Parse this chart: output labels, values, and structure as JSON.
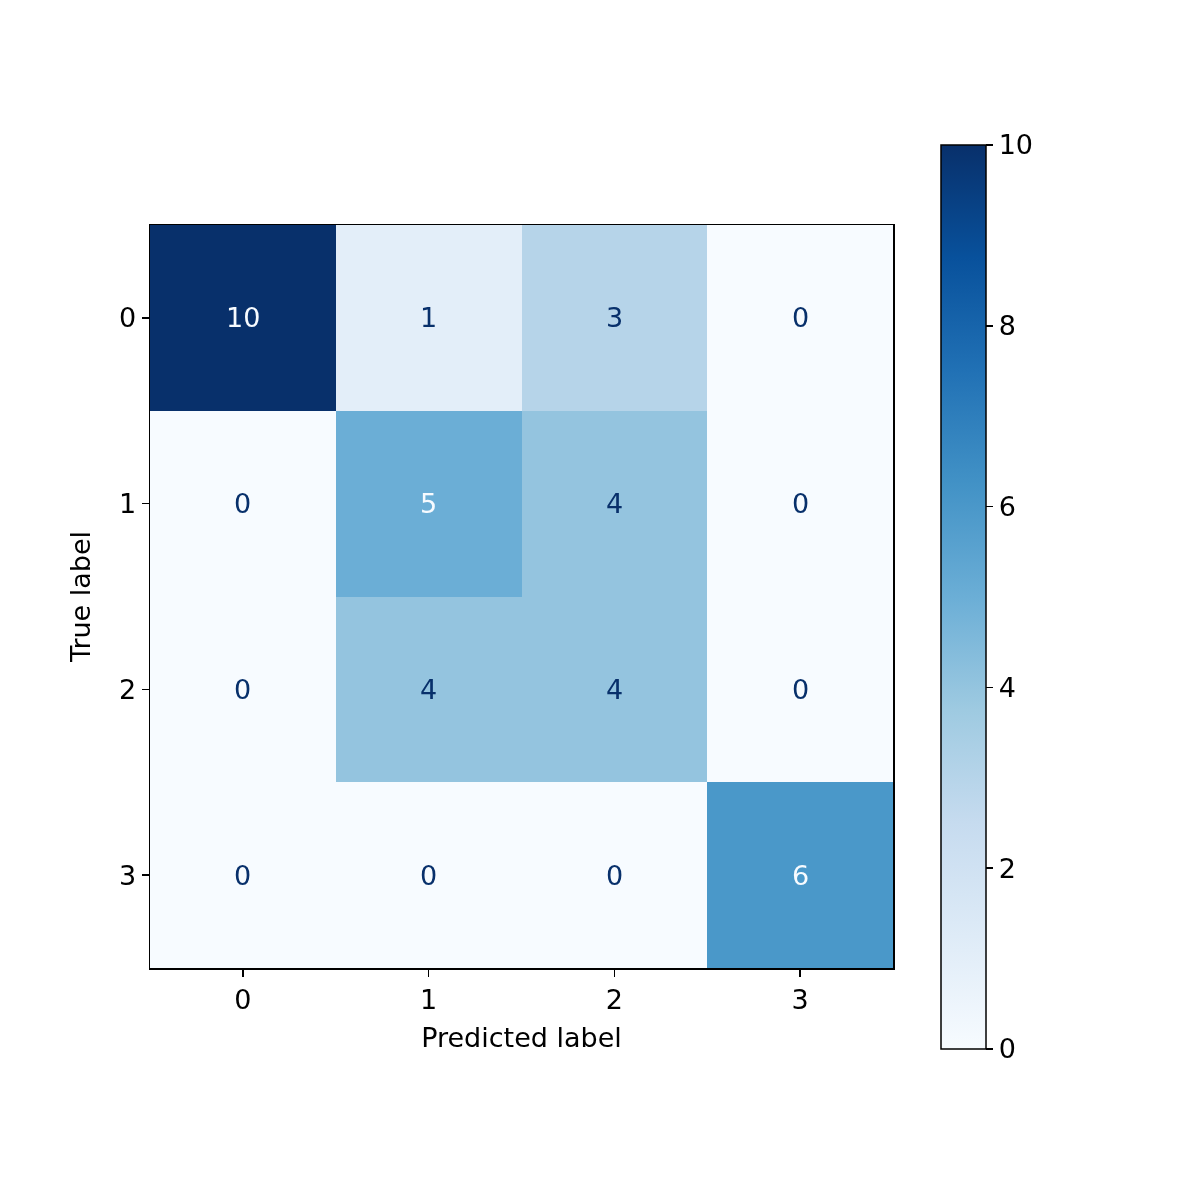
{
  "chart_data": {
    "type": "heatmap",
    "xlabel": "Predicted label",
    "ylabel": "True label",
    "categories": [
      "0",
      "1",
      "2",
      "3"
    ],
    "y_categories": [
      "0",
      "1",
      "2",
      "3"
    ],
    "cells": [
      [
        10,
        1,
        3,
        0
      ],
      [
        0,
        5,
        4,
        0
      ],
      [
        0,
        4,
        4,
        0
      ],
      [
        0,
        0,
        0,
        6
      ]
    ],
    "clim": [
      0,
      10
    ],
    "cticks": [
      0,
      2,
      4,
      6,
      8,
      10
    ],
    "data_labels": true
  }
}
